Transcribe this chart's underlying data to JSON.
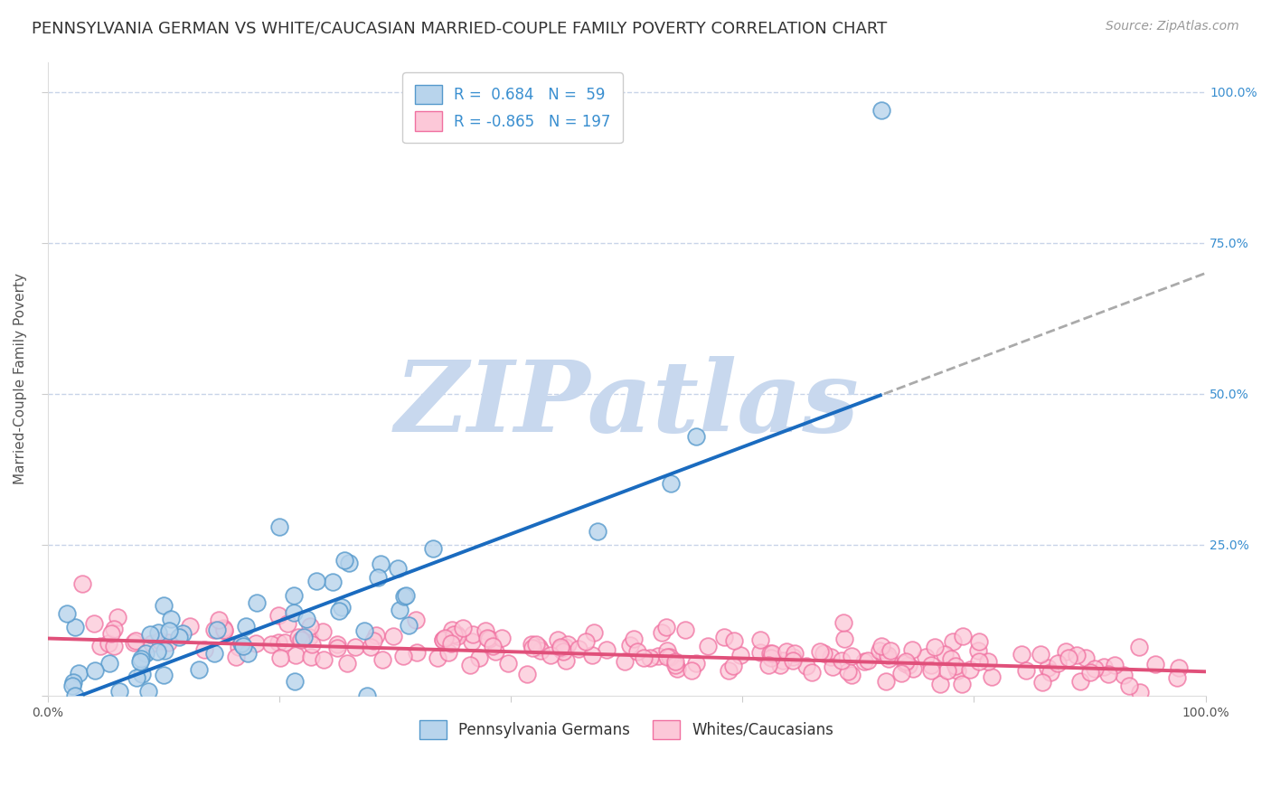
{
  "title": "PENNSYLVANIA GERMAN VS WHITE/CAUCASIAN MARRIED-COUPLE FAMILY POVERTY CORRELATION CHART",
  "source": "Source: ZipAtlas.com",
  "ylabel": "Married-Couple Family Poverty",
  "ytick_labels_right": [
    "25.0%",
    "50.0%",
    "75.0%",
    "100.0%"
  ],
  "ytick_vals_right": [
    0.25,
    0.5,
    0.75,
    1.0
  ],
  "series1_label": "Pennsylvania Germans",
  "series1_color": "#b8d4ec",
  "series1_edge_color": "#5599cc",
  "series1_R": "0.684",
  "series1_N": "59",
  "series2_label": "Whites/Caucasians",
  "series2_color": "#fcc8d8",
  "series2_edge_color": "#f070a0",
  "series2_R": "-0.865",
  "series2_N": "197",
  "trend1_color": "#1a6bbf",
  "trend2_color": "#e0507a",
  "legend_R_color": "#3a8fd0",
  "background_color": "#ffffff",
  "grid_color": "#c8d4e8",
  "watermark_color": "#c8d8ee",
  "title_fontsize": 13,
  "source_fontsize": 10,
  "axis_label_fontsize": 11,
  "tick_fontsize": 10,
  "legend_fontsize": 12
}
